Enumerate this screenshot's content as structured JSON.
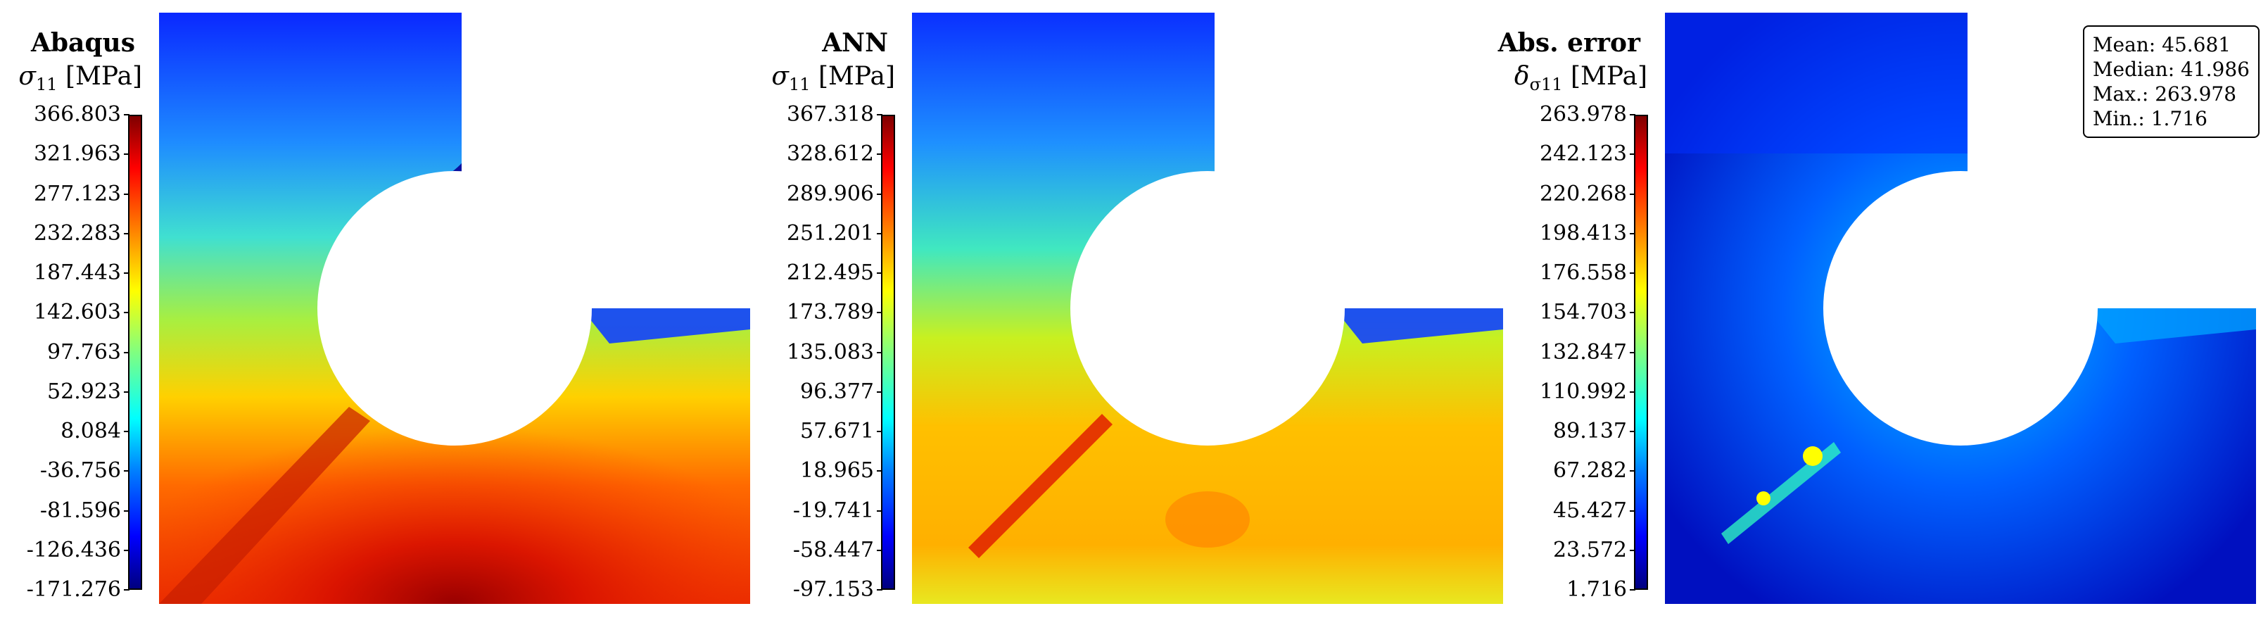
{
  "chart_data": [
    {
      "type": "heatmap",
      "title": "Abaqus",
      "colorbar_label": "σ11 [MPa]",
      "colorbar_ticks": [
        "366.803",
        "321.963",
        "277.123",
        "232.283",
        "187.443",
        "142.603",
        "97.763",
        "52.923",
        "8.084",
        "-36.756",
        "-81.596",
        "-126.436",
        "-171.276"
      ],
      "range": [
        -171.276,
        366.803
      ]
    },
    {
      "type": "heatmap",
      "title": "ANN",
      "colorbar_label": "σ11 [MPa]",
      "colorbar_ticks": [
        "367.318",
        "328.612",
        "289.906",
        "251.201",
        "212.495",
        "173.789",
        "135.083",
        "96.377",
        "57.671",
        "18.965",
        "-19.741",
        "-58.447",
        "-97.153"
      ],
      "range": [
        -97.153,
        367.318
      ]
    },
    {
      "type": "heatmap",
      "title": "Abs. error",
      "colorbar_label": "δσ11 [MPa]",
      "colorbar_ticks": [
        "263.978",
        "242.123",
        "220.268",
        "198.413",
        "176.558",
        "154.703",
        "132.847",
        "110.992",
        "89.137",
        "67.282",
        "45.427",
        "23.572",
        "1.716"
      ],
      "range": [
        1.716,
        263.978
      ],
      "stats": {
        "mean": "Mean: 45.681",
        "median": "Median: 41.986",
        "max": "Max.: 263.978",
        "min": "Min.: 1.716"
      }
    }
  ],
  "labels": {
    "p1_title": "Abaqus",
    "p2_title": "ANN",
    "p3_title": "Abs. error",
    "unit": "[MPa]",
    "sigma": "σ",
    "delta": "δ",
    "sub11": "11",
    "subsigma11": "σ11"
  }
}
